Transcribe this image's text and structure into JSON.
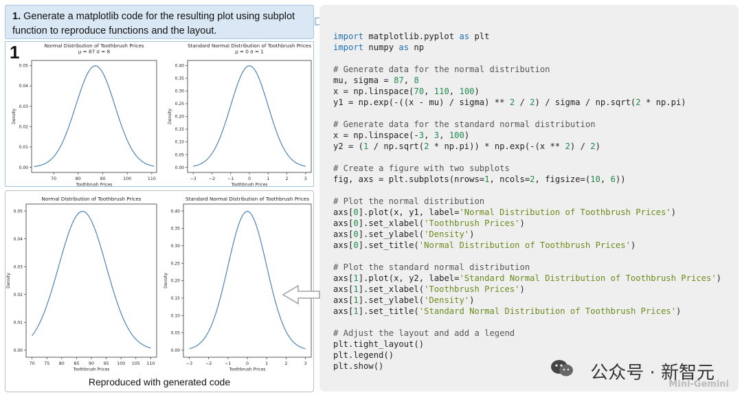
{
  "prompt": {
    "number": "1.",
    "text": "Generate a matplotlib code for the resulting plot using subplot function to reproduce functions and the layout."
  },
  "badge": "1",
  "caption": "Reproduced with generated code",
  "watermark": {
    "text": "公众号 · 新智元",
    "sub": "Mini-Gemini"
  },
  "colors": {
    "line": "#3b78b0",
    "prompt_bg": "#d9e8f4",
    "code_bg": "#efefef"
  },
  "code_lines": [
    [
      [
        "kw",
        "import"
      ],
      [
        "t",
        " matplotlib.pyplot "
      ],
      [
        "kw",
        "as"
      ],
      [
        "t",
        " plt"
      ]
    ],
    [
      [
        "kw",
        "import"
      ],
      [
        "t",
        " numpy "
      ],
      [
        "kw",
        "as"
      ],
      [
        "t",
        " np"
      ]
    ],
    [],
    [
      [
        "cm",
        "# Generate data for the normal distribution"
      ]
    ],
    [
      [
        "t",
        "mu, sigma = "
      ],
      [
        "num",
        "87"
      ],
      [
        "t",
        ", "
      ],
      [
        "num",
        "8"
      ]
    ],
    [
      [
        "t",
        "x = np.linspace("
      ],
      [
        "num",
        "70"
      ],
      [
        "t",
        ", "
      ],
      [
        "num",
        "110"
      ],
      [
        "t",
        ", "
      ],
      [
        "num",
        "100"
      ],
      [
        "t",
        ")"
      ]
    ],
    [
      [
        "t",
        "y1 = np.exp(-((x - mu) / sigma) ** "
      ],
      [
        "num",
        "2"
      ],
      [
        "t",
        " / "
      ],
      [
        "num",
        "2"
      ],
      [
        "t",
        ") / sigma / np.sqrt("
      ],
      [
        "num",
        "2"
      ],
      [
        "t",
        " * np.pi)"
      ]
    ],
    [],
    [
      [
        "cm",
        "# Generate data for the standard normal distribution"
      ]
    ],
    [
      [
        "t",
        "x = np.linspace(-"
      ],
      [
        "num",
        "3"
      ],
      [
        "t",
        ", "
      ],
      [
        "num",
        "3"
      ],
      [
        "t",
        ", "
      ],
      [
        "num",
        "100"
      ],
      [
        "t",
        ")"
      ]
    ],
    [
      [
        "t",
        "y2 = ("
      ],
      [
        "num",
        "1"
      ],
      [
        "t",
        " / np.sqrt("
      ],
      [
        "num",
        "2"
      ],
      [
        "t",
        " * np.pi)) * np.exp(-(x ** "
      ],
      [
        "num",
        "2"
      ],
      [
        "t",
        ") / "
      ],
      [
        "num",
        "2"
      ],
      [
        "t",
        ")"
      ]
    ],
    [],
    [
      [
        "cm",
        "# Create a figure with two subplots"
      ]
    ],
    [
      [
        "t",
        "fig, axs = plt.subplots(nrows="
      ],
      [
        "num",
        "1"
      ],
      [
        "t",
        ", ncols="
      ],
      [
        "num",
        "2"
      ],
      [
        "t",
        ", figsize=("
      ],
      [
        "num",
        "10"
      ],
      [
        "t",
        ", "
      ],
      [
        "num",
        "6"
      ],
      [
        "t",
        "))"
      ]
    ],
    [],
    [
      [
        "cm",
        "# Plot the normal distribution"
      ]
    ],
    [
      [
        "t",
        "axs["
      ],
      [
        "num",
        "0"
      ],
      [
        "t",
        "].plot(x, y1, label="
      ],
      [
        "str",
        "'Normal Distribution of Toothbrush Prices'"
      ],
      [
        "t",
        ")"
      ]
    ],
    [
      [
        "t",
        "axs["
      ],
      [
        "num",
        "0"
      ],
      [
        "t",
        "].set_xlabel("
      ],
      [
        "str",
        "'Toothbrush Prices'"
      ],
      [
        "t",
        ")"
      ]
    ],
    [
      [
        "t",
        "axs["
      ],
      [
        "num",
        "0"
      ],
      [
        "t",
        "].set_ylabel("
      ],
      [
        "str",
        "'Density'"
      ],
      [
        "t",
        ")"
      ]
    ],
    [
      [
        "t",
        "axs["
      ],
      [
        "num",
        "0"
      ],
      [
        "t",
        "].set_title("
      ],
      [
        "str",
        "'Normal Distribution of Toothbrush Prices'"
      ],
      [
        "t",
        ")"
      ]
    ],
    [],
    [
      [
        "cm",
        "# Plot the standard normal distribution"
      ]
    ],
    [
      [
        "t",
        "axs["
      ],
      [
        "num",
        "1"
      ],
      [
        "t",
        "].plot(x, y2, label="
      ],
      [
        "str",
        "'Standard Normal Distribution of Toothbrush Prices'"
      ],
      [
        "t",
        ")"
      ]
    ],
    [
      [
        "t",
        "axs["
      ],
      [
        "num",
        "1"
      ],
      [
        "t",
        "].set_xlabel("
      ],
      [
        "str",
        "'Toothbrush Prices'"
      ],
      [
        "t",
        ")"
      ]
    ],
    [
      [
        "t",
        "axs["
      ],
      [
        "num",
        "1"
      ],
      [
        "t",
        "].set_ylabel("
      ],
      [
        "str",
        "'Density'"
      ],
      [
        "t",
        ")"
      ]
    ],
    [
      [
        "t",
        "axs["
      ],
      [
        "num",
        "1"
      ],
      [
        "t",
        "].set_title("
      ],
      [
        "str",
        "'Standard Normal Distribution of Toothbrush Prices'"
      ],
      [
        "t",
        ")"
      ]
    ],
    [],
    [
      [
        "cm",
        "# Adjust the layout and add a legend"
      ]
    ],
    [
      [
        "t",
        "plt.tight_layout()"
      ]
    ],
    [
      [
        "t",
        "plt.legend()"
      ]
    ],
    [
      [
        "t",
        "plt.show()"
      ]
    ]
  ],
  "chart_data": [
    {
      "type": "line",
      "title": "Normal Distribution of Toothbrush Prices",
      "subtitle": "μ = 87 σ = 8",
      "xlabel": "Toothbrush Prices",
      "ylabel": "Density",
      "mu": 87,
      "sigma": 8,
      "xrange": [
        62,
        111
      ],
      "xlim": [
        61,
        112
      ],
      "ylim": [
        -0.0025,
        0.0525
      ],
      "xticks": [
        70,
        80,
        90,
        100,
        110
      ],
      "yticks": [
        0.0,
        0.01,
        0.02,
        0.03,
        0.04,
        0.05
      ],
      "ytick_labels": [
        "0.00",
        "0.01",
        "0.02",
        "0.03",
        "0.04",
        "0.05"
      ]
    },
    {
      "type": "line",
      "title": "Standard Normal Distribution of Toothbrush Prices",
      "subtitle": "μ = 0 σ = 1",
      "xlabel": "Toothbrush Prices",
      "ylabel": "Density",
      "mu": 0,
      "sigma": 1,
      "xrange": [
        -3,
        3
      ],
      "xlim": [
        -3.3,
        3.3
      ],
      "ylim": [
        -0.02,
        0.42
      ],
      "xticks": [
        -3,
        -2,
        -1,
        0,
        1,
        2,
        3
      ],
      "yticks": [
        0.0,
        0.05,
        0.1,
        0.15,
        0.2,
        0.25,
        0.3,
        0.35,
        0.4
      ],
      "ytick_labels": [
        "0.00",
        "0.05",
        "0.10",
        "0.15",
        "0.20",
        "0.25",
        "0.30",
        "0.35",
        "0.40"
      ]
    },
    {
      "type": "line",
      "title": "Normal Distribution of Toothbrush Prices",
      "subtitle": "",
      "xlabel": "Toothbrush Prices",
      "ylabel": "Density",
      "mu": 87,
      "sigma": 8,
      "xrange": [
        70,
        110
      ],
      "xlim": [
        68,
        112
      ],
      "ylim": [
        -0.0025,
        0.0525
      ],
      "xticks": [
        70,
        75,
        80,
        85,
        90,
        95,
        100,
        105,
        110
      ],
      "yticks": [
        0.0,
        0.01,
        0.02,
        0.03,
        0.04,
        0.05
      ],
      "ytick_labels": [
        "0.00",
        "0.01",
        "0.02",
        "0.03",
        "0.04",
        "0.05"
      ]
    },
    {
      "type": "line",
      "title": "Standard Normal Distribution of Toothbrush Prices",
      "subtitle": "",
      "xlabel": "Toothbrush Prices",
      "ylabel": "Density",
      "mu": 0,
      "sigma": 1,
      "xrange": [
        -3,
        3
      ],
      "xlim": [
        -3.3,
        3.3
      ],
      "ylim": [
        -0.02,
        0.42
      ],
      "xticks": [
        -3,
        -2,
        -1,
        0,
        1,
        2,
        3
      ],
      "yticks": [
        0.0,
        0.05,
        0.1,
        0.15,
        0.2,
        0.25,
        0.3,
        0.35,
        0.4
      ],
      "ytick_labels": [
        "0.00",
        "0.05",
        "0.10",
        "0.15",
        "0.20",
        "0.25",
        "0.30",
        "0.35",
        "0.40"
      ]
    }
  ]
}
